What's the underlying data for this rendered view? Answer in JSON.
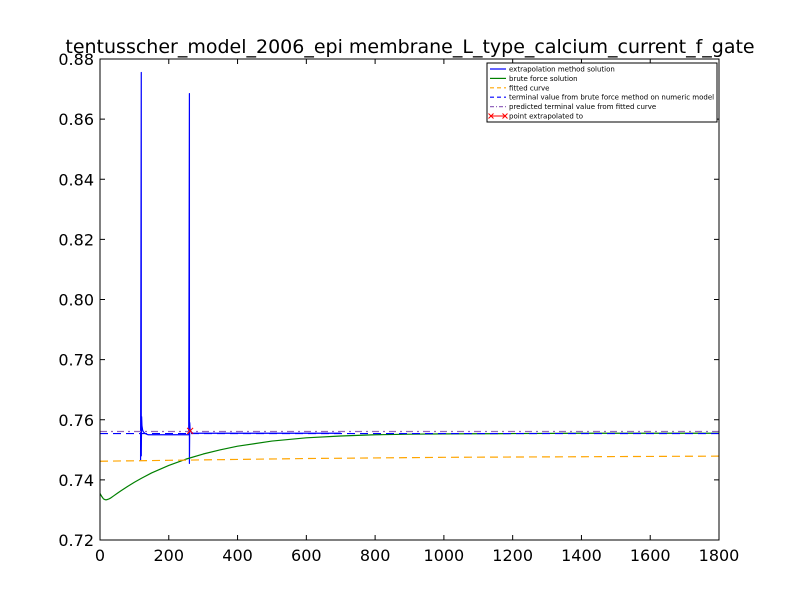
{
  "chart_data": {
    "type": "line",
    "title": "tentusscher_model_2006_epi membrane_L_type_calcium_current_f_gate",
    "xlabel": "",
    "ylabel": "",
    "xlim": [
      0,
      1800
    ],
    "ylim": [
      0.72,
      0.88
    ],
    "xticks": [
      0,
      200,
      400,
      600,
      800,
      1000,
      1200,
      1400,
      1600,
      1800
    ],
    "yticks": [
      0.72,
      0.74,
      0.76,
      0.78,
      0.8,
      0.82,
      0.84,
      0.86,
      0.88
    ],
    "xtick_labels": [
      "0",
      "200",
      "400",
      "600",
      "800",
      "1000",
      "1200",
      "1400",
      "1600",
      "1800"
    ],
    "ytick_labels": [
      "0.72",
      "0.74",
      "0.76",
      "0.78",
      "0.80",
      "0.82",
      "0.84",
      "0.86",
      "0.88"
    ],
    "grid": false,
    "legend_position": "top-right",
    "series": [
      {
        "name": "extrapolation method solution",
        "color": "#0000ff",
        "style": "solid",
        "x": [
          118,
          119,
          120,
          120,
          121,
          122,
          124,
          126,
          130,
          140,
          160,
          200,
          250,
          258,
          259,
          260,
          260,
          261,
          262,
          265,
          270,
          300,
          400,
          500,
          600,
          700
        ],
        "y": [
          0.7465,
          0.81,
          0.8755,
          0.748,
          0.761,
          0.758,
          0.7565,
          0.756,
          0.7555,
          0.755,
          0.755,
          0.755,
          0.755,
          0.755,
          0.81,
          0.8685,
          0.7455,
          0.759,
          0.7565,
          0.756,
          0.7555,
          0.7555,
          0.7555,
          0.7555,
          0.7555,
          0.7555
        ]
      },
      {
        "name": "brute force solution",
        "color": "#008000",
        "style": "solid",
        "x": [
          0,
          5,
          10,
          15,
          20,
          25,
          30,
          40,
          50,
          60,
          80,
          100,
          120,
          150,
          200,
          250,
          300,
          350,
          400,
          500,
          600,
          700,
          800,
          900,
          1000,
          1200,
          1400,
          1600,
          1800
        ],
        "y": [
          0.7355,
          0.7345,
          0.7337,
          0.7334,
          0.7334,
          0.7336,
          0.7339,
          0.7347,
          0.7355,
          0.7363,
          0.7378,
          0.7392,
          0.7405,
          0.7423,
          0.7448,
          0.7469,
          0.7486,
          0.75,
          0.7512,
          0.7529,
          0.754,
          0.7546,
          0.755,
          0.7552,
          0.7553,
          0.7554,
          0.7555,
          0.7555,
          0.7555
        ]
      },
      {
        "name": "fitted curve",
        "color": "#ffa500",
        "style": "dashed",
        "x": [
          0,
          200,
          400,
          600,
          800,
          1000,
          1200,
          1400,
          1600,
          1800
        ],
        "y": [
          0.7462,
          0.7465,
          0.7468,
          0.7471,
          0.7473,
          0.7475,
          0.7476,
          0.7477,
          0.7478,
          0.7479
        ]
      },
      {
        "name": "terminal value from brute force method on numeric model",
        "color": "#0000ff",
        "style": "dashed",
        "x": [
          0,
          1800
        ],
        "y": [
          0.7554,
          0.7554
        ]
      },
      {
        "name": "predicted terminal value from fitted curve",
        "color": "#9467bd",
        "style": "dashdot",
        "x": [
          0,
          1800
        ],
        "y": [
          0.7561,
          0.7561
        ]
      },
      {
        "name": "point extrapolated to",
        "color": "#ff0000",
        "style": "marker-x",
        "x": [
          262
        ],
        "y": [
          0.7563
        ]
      }
    ]
  }
}
